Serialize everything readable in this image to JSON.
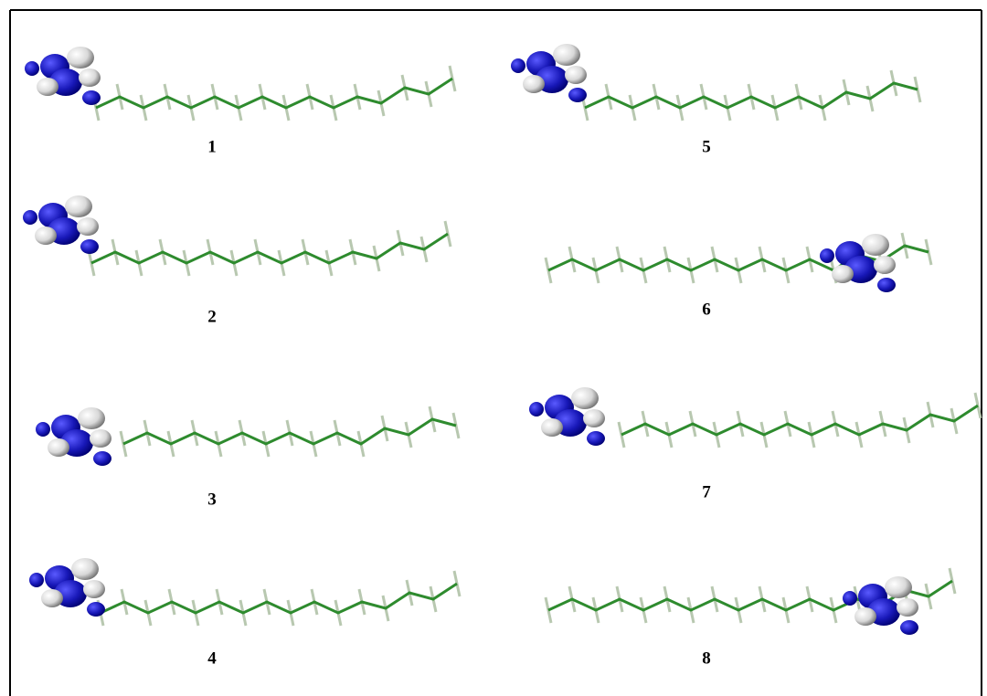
{
  "panels": [
    "1",
    "5",
    "2",
    "6",
    "3",
    "7",
    "4",
    "8"
  ]
}
